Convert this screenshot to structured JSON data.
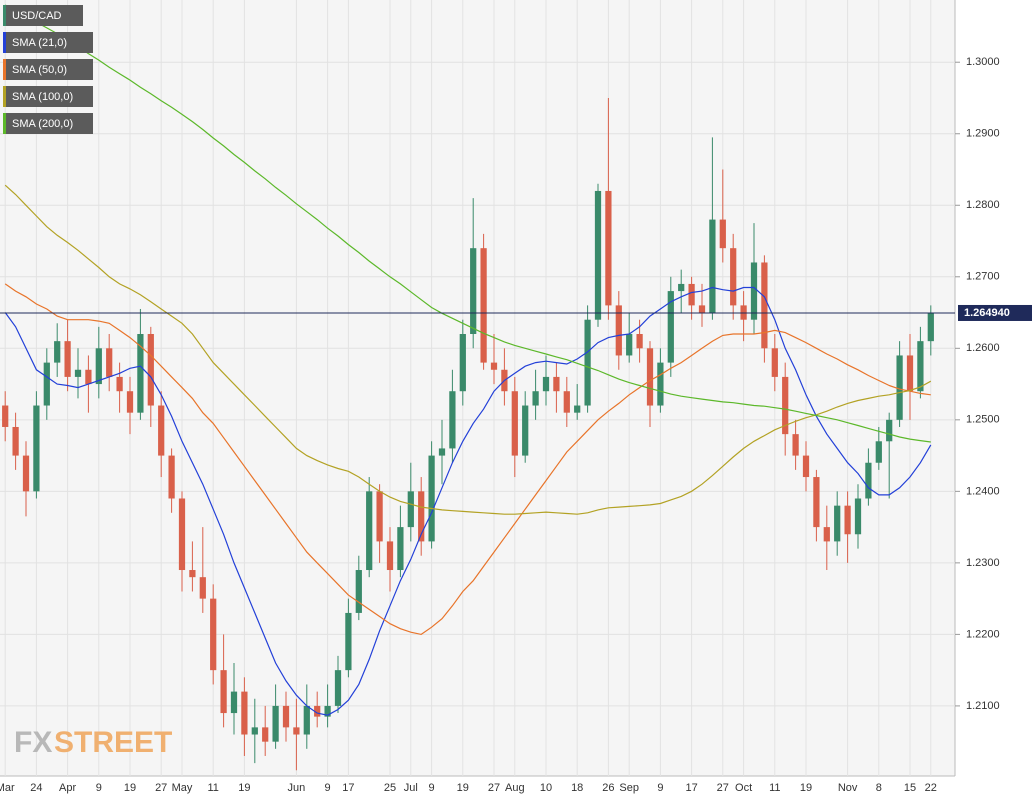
{
  "chart_data": {
    "type": "candlestick",
    "name": "USD/CAD",
    "up_color": "#3a8a6a",
    "down_color": "#d9604a",
    "categories": [
      "Mar",
      null,
      null,
      "24",
      null,
      null,
      "Apr",
      null,
      null,
      "9",
      null,
      null,
      "19",
      null,
      null,
      "27",
      null,
      "May",
      null,
      null,
      "11",
      null,
      null,
      "19",
      null,
      null,
      null,
      null,
      "Jun",
      null,
      null,
      "9",
      null,
      "17",
      null,
      null,
      null,
      "25",
      null,
      "Jul",
      null,
      "9",
      null,
      null,
      "19",
      null,
      null,
      "27",
      null,
      "Aug",
      null,
      null,
      "10",
      null,
      null,
      "18",
      null,
      null,
      "26",
      null,
      "Sep",
      null,
      null,
      "9",
      null,
      null,
      "17",
      null,
      null,
      "27",
      null,
      "Oct",
      null,
      null,
      "11",
      null,
      null,
      "19",
      null,
      null,
      null,
      "Nov",
      null,
      null,
      "8",
      null,
      null,
      "15",
      null,
      "22"
    ],
    "open": [
      1.252,
      1.249,
      1.245,
      1.24,
      1.252,
      1.258,
      1.261,
      1.256,
      1.257,
      1.255,
      1.26,
      1.256,
      1.254,
      1.251,
      1.262,
      1.252,
      1.245,
      1.239,
      1.229,
      1.228,
      1.225,
      1.215,
      1.209,
      1.212,
      1.206,
      1.207,
      1.205,
      1.21,
      1.207,
      1.206,
      1.21,
      1.2085,
      1.21,
      1.215,
      1.223,
      1.229,
      1.24,
      1.233,
      1.229,
      1.235,
      1.24,
      1.233,
      1.245,
      1.246,
      1.254,
      1.262,
      1.274,
      1.258,
      1.257,
      1.254,
      1.245,
      1.252,
      1.254,
      1.256,
      1.254,
      1.251,
      1.252,
      1.264,
      1.282,
      1.266,
      1.259,
      1.262,
      1.26,
      1.252,
      1.258,
      1.268,
      1.269,
      1.266,
      1.265,
      1.278,
      1.274,
      1.266,
      1.264,
      1.272,
      1.26,
      1.256,
      1.248,
      1.245,
      1.242,
      1.235,
      1.233,
      1.238,
      1.234,
      1.239,
      1.244,
      1.247,
      1.25,
      1.259,
      1.254,
      1.261
    ],
    "high": [
      1.254,
      1.251,
      1.247,
      1.254,
      1.26,
      1.2635,
      1.264,
      1.26,
      1.259,
      1.263,
      1.262,
      1.258,
      1.256,
      1.2655,
      1.263,
      1.254,
      1.246,
      1.24,
      1.233,
      1.235,
      1.227,
      1.22,
      1.216,
      1.214,
      1.211,
      1.21,
      1.213,
      1.212,
      1.211,
      1.213,
      1.212,
      1.213,
      1.217,
      1.225,
      1.231,
      1.242,
      1.241,
      1.235,
      1.238,
      1.244,
      1.242,
      1.247,
      1.25,
      1.257,
      1.264,
      1.281,
      1.276,
      1.262,
      1.26,
      1.256,
      1.254,
      1.257,
      1.259,
      1.258,
      1.256,
      1.255,
      1.266,
      1.283,
      1.295,
      1.268,
      1.265,
      1.264,
      1.261,
      1.26,
      1.27,
      1.271,
      1.27,
      1.269,
      1.2895,
      1.285,
      1.276,
      1.268,
      1.2775,
      1.273,
      1.262,
      1.258,
      1.25,
      1.247,
      1.243,
      1.238,
      1.24,
      1.24,
      1.241,
      1.246,
      1.249,
      1.251,
      1.261,
      1.262,
      1.263,
      1.266
    ],
    "low": [
      1.247,
      1.243,
      1.2365,
      1.239,
      1.25,
      1.256,
      1.254,
      1.253,
      1.251,
      1.253,
      1.254,
      1.251,
      1.248,
      1.25,
      1.249,
      1.242,
      1.237,
      1.226,
      1.226,
      1.223,
      1.213,
      1.207,
      1.206,
      1.203,
      1.202,
      1.203,
      1.204,
      1.205,
      1.201,
      1.204,
      1.207,
      1.207,
      1.209,
      1.214,
      1.222,
      1.228,
      1.23,
      1.226,
      1.228,
      1.233,
      1.231,
      1.232,
      1.241,
      1.244,
      1.252,
      1.26,
      1.257,
      1.255,
      1.252,
      1.242,
      1.244,
      1.25,
      1.252,
      1.251,
      1.249,
      1.25,
      1.251,
      1.263,
      1.264,
      1.257,
      1.258,
      1.258,
      1.249,
      1.251,
      1.256,
      1.265,
      1.264,
      1.263,
      1.264,
      1.272,
      1.264,
      1.261,
      1.262,
      1.258,
      1.254,
      1.245,
      1.243,
      1.24,
      1.233,
      1.229,
      1.231,
      1.23,
      1.232,
      1.238,
      1.243,
      1.239,
      1.249,
      1.25,
      1.253,
      1.259
    ],
    "close": [
      1.249,
      1.245,
      1.24,
      1.252,
      1.258,
      1.261,
      1.256,
      1.257,
      1.255,
      1.26,
      1.256,
      1.254,
      1.251,
      1.262,
      1.252,
      1.245,
      1.239,
      1.229,
      1.228,
      1.225,
      1.215,
      1.209,
      1.212,
      1.206,
      1.207,
      1.205,
      1.21,
      1.207,
      1.206,
      1.21,
      1.2085,
      1.21,
      1.215,
      1.223,
      1.229,
      1.24,
      1.233,
      1.229,
      1.235,
      1.24,
      1.233,
      1.245,
      1.246,
      1.254,
      1.262,
      1.274,
      1.258,
      1.257,
      1.254,
      1.245,
      1.252,
      1.254,
      1.256,
      1.254,
      1.251,
      1.252,
      1.264,
      1.282,
      1.266,
      1.259,
      1.262,
      1.26,
      1.252,
      1.258,
      1.268,
      1.269,
      1.266,
      1.265,
      1.278,
      1.274,
      1.266,
      1.264,
      1.272,
      1.26,
      1.256,
      1.248,
      1.245,
      1.242,
      1.235,
      1.233,
      1.238,
      1.234,
      1.239,
      1.244,
      1.247,
      1.25,
      1.259,
      1.254,
      1.261,
      1.2649
    ],
    "series": [
      {
        "name": "SMA (21,0)",
        "color": "#2340d8",
        "values": [
          1.265,
          1.263,
          1.26,
          1.257,
          1.256,
          1.255,
          1.2548,
          1.2545,
          1.255,
          1.2555,
          1.256,
          1.2565,
          1.2572,
          1.2575,
          1.256,
          1.2535,
          1.2505,
          1.247,
          1.244,
          1.241,
          1.2375,
          1.234,
          1.23,
          1.2265,
          1.223,
          1.2195,
          1.216,
          1.2135,
          1.2115,
          1.21,
          1.209,
          1.2087,
          1.2095,
          1.2108,
          1.213,
          1.2165,
          1.2205,
          1.224,
          1.2275,
          1.2305,
          1.234,
          1.237,
          1.2405,
          1.244,
          1.247,
          1.2495,
          1.2515,
          1.254,
          1.2555,
          1.2565,
          1.2575,
          1.258,
          1.2582,
          1.258,
          1.2578,
          1.2585,
          1.2595,
          1.2608,
          1.2615,
          1.2618,
          1.262,
          1.263,
          1.2645,
          1.2655,
          1.2665,
          1.2672,
          1.2678,
          1.268,
          1.2685,
          1.2682,
          1.268,
          1.2685,
          1.2685,
          1.2672,
          1.264,
          1.26,
          1.257,
          1.2535,
          1.2505,
          1.248,
          1.246,
          1.244,
          1.2425,
          1.2405,
          1.2395,
          1.2395,
          1.2405,
          1.242,
          1.244,
          1.2465
        ]
      },
      {
        "name": "SMA (50,0)",
        "color": "#e8742a",
        "values": [
          1.269,
          1.268,
          1.2672,
          1.2662,
          1.2655,
          1.2645,
          1.264,
          1.264,
          1.264,
          1.2638,
          1.2635,
          1.2625,
          1.2615,
          1.2603,
          1.259,
          1.2575,
          1.256,
          1.2545,
          1.253,
          1.251,
          1.2495,
          1.2475,
          1.2455,
          1.2435,
          1.2415,
          1.2395,
          1.2375,
          1.2355,
          1.2335,
          1.2315,
          1.23,
          1.2285,
          1.227,
          1.2255,
          1.2245,
          1.2235,
          1.2225,
          1.2215,
          1.2208,
          1.2203,
          1.22,
          1.221,
          1.2222,
          1.224,
          1.226,
          1.2275,
          1.2295,
          1.2315,
          1.2335,
          1.2355,
          1.2375,
          1.2395,
          1.2415,
          1.2435,
          1.2455,
          1.247,
          1.2485,
          1.25,
          1.2512,
          1.2523,
          1.2535,
          1.2545,
          1.2555,
          1.2563,
          1.2572,
          1.258,
          1.259,
          1.26,
          1.261,
          1.2618,
          1.262,
          1.262,
          1.262,
          1.2622,
          1.2625,
          1.2622,
          1.2615,
          1.2608,
          1.26,
          1.2592,
          1.2585,
          1.2577,
          1.257,
          1.2562,
          1.2555,
          1.2548,
          1.2543,
          1.254,
          1.2537,
          1.2535
        ]
      },
      {
        "name": "SMA (100,0)",
        "color": "#b3a224",
        "values": [
          1.2828,
          1.2815,
          1.28,
          1.2785,
          1.277,
          1.2758,
          1.2748,
          1.2737,
          1.2725,
          1.2713,
          1.27,
          1.269,
          1.2683,
          1.2675,
          1.2665,
          1.2655,
          1.2645,
          1.2635,
          1.262,
          1.26,
          1.258,
          1.2565,
          1.255,
          1.2535,
          1.252,
          1.2505,
          1.249,
          1.2475,
          1.246,
          1.245,
          1.2443,
          1.2437,
          1.2432,
          1.2428,
          1.242,
          1.241,
          1.24,
          1.2392,
          1.2386,
          1.2382,
          1.2378,
          1.2376,
          1.2374,
          1.2373,
          1.2372,
          1.2371,
          1.237,
          1.2369,
          1.2368,
          1.2368,
          1.2369,
          1.237,
          1.2371,
          1.237,
          1.2369,
          1.2368,
          1.237,
          1.2374,
          1.2377,
          1.2378,
          1.2379,
          1.238,
          1.2381,
          1.2383,
          1.2388,
          1.2393,
          1.24,
          1.241,
          1.2422,
          1.2435,
          1.2448,
          1.246,
          1.247,
          1.2478,
          1.2486,
          1.2492,
          1.2498,
          1.2503,
          1.2507,
          1.2512,
          1.2518,
          1.2523,
          1.2527,
          1.253,
          1.2533,
          1.2535,
          1.2538,
          1.2541,
          1.2546,
          1.2554
        ]
      },
      {
        "name": "SMA (200,0)",
        "color": "#5cb82a",
        "values": [
          1.308,
          1.3072,
          1.3064,
          1.3056,
          1.3048,
          1.304,
          1.3031,
          1.3022,
          1.3012,
          1.3003,
          1.2993,
          1.2984,
          1.2975,
          1.2965,
          1.2956,
          1.2946,
          1.2937,
          1.2927,
          1.2917,
          1.2906,
          1.2894,
          1.2883,
          1.2871,
          1.286,
          1.2848,
          1.2837,
          1.2825,
          1.2814,
          1.2802,
          1.2791,
          1.278,
          1.2768,
          1.2757,
          1.2745,
          1.2734,
          1.2722,
          1.2711,
          1.27,
          1.269,
          1.2679,
          1.2668,
          1.2657,
          1.2649,
          1.2642,
          1.2635,
          1.2628,
          1.2621,
          1.2615,
          1.2609,
          1.2604,
          1.26,
          1.2596,
          1.2592,
          1.2588,
          1.2584,
          1.2579,
          1.2574,
          1.2569,
          1.2563,
          1.2557,
          1.2552,
          1.2548,
          1.2544,
          1.254,
          1.2536,
          1.2533,
          1.2531,
          1.2529,
          1.2527,
          1.2525,
          1.2524,
          1.2522,
          1.252,
          1.2519,
          1.2517,
          1.2515,
          1.2512,
          1.2509,
          1.2506,
          1.2503,
          1.25,
          1.2496,
          1.2492,
          1.2488,
          1.2484,
          1.248,
          1.2476,
          1.2473,
          1.2471,
          1.2469
        ]
      }
    ],
    "last_price": {
      "value": 1.26494,
      "label": "1.264940"
    },
    "ylim": [
      1.2002,
      1.3087
    ],
    "yticks": [
      {
        "value": 1.21,
        "label": "1.2100"
      },
      {
        "value": 1.22,
        "label": "1.2200"
      },
      {
        "value": 1.23,
        "label": "1.2300"
      },
      {
        "value": 1.24,
        "label": "1.2400"
      },
      {
        "value": 1.25,
        "label": "1.2500"
      },
      {
        "value": 1.26,
        "label": "1.2600"
      },
      {
        "value": 1.27,
        "label": "1.2700"
      },
      {
        "value": 1.28,
        "label": "1.2800"
      },
      {
        "value": 1.29,
        "label": "1.2900"
      },
      {
        "value": 1.3,
        "label": "1.3000"
      }
    ],
    "grid": true,
    "watermark": [
      "FX",
      "STREET"
    ]
  }
}
